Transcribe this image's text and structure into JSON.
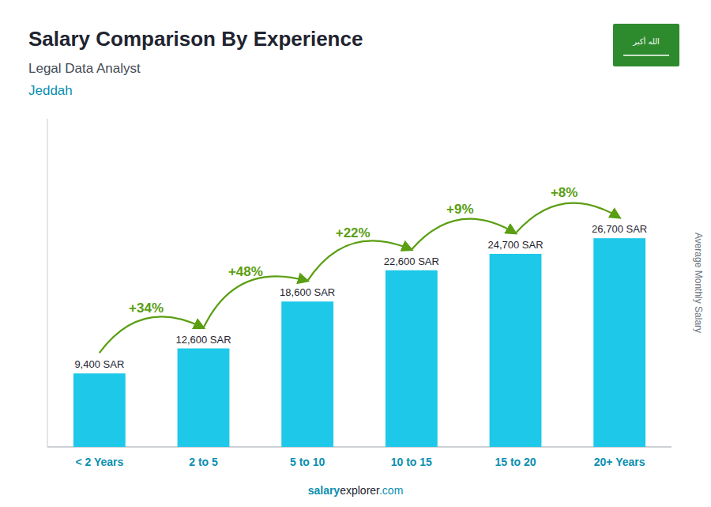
{
  "chart_data": {
    "type": "bar",
    "title": "Salary Comparison By Experience",
    "subtitle": "Legal Data Analyst",
    "city": "Jeddah",
    "y_label": "Average Monthly Salary",
    "flag_text": "الله أكبر",
    "footer": [
      "salary",
      "explorer",
      ".com"
    ],
    "categories": [
      "< 2 Years",
      "2 to 5",
      "5 to 10",
      "10 to 15",
      "15 to 20",
      "20+ Years"
    ],
    "values": [
      9400,
      12600,
      18600,
      22600,
      24700,
      26700
    ],
    "value_labels": [
      "9,400 SAR",
      "12,600 SAR",
      "18,600 SAR",
      "22,600 SAR",
      "24,700 SAR",
      "26,700 SAR"
    ],
    "annotations": [
      "+34%",
      "+48%",
      "+22%",
      "+9%",
      "+8%"
    ],
    "color": "#1ec8e8",
    "ylim": [
      0,
      42000
    ],
    "data_labels": true,
    "tick_labels": "x",
    "grid": false
  }
}
